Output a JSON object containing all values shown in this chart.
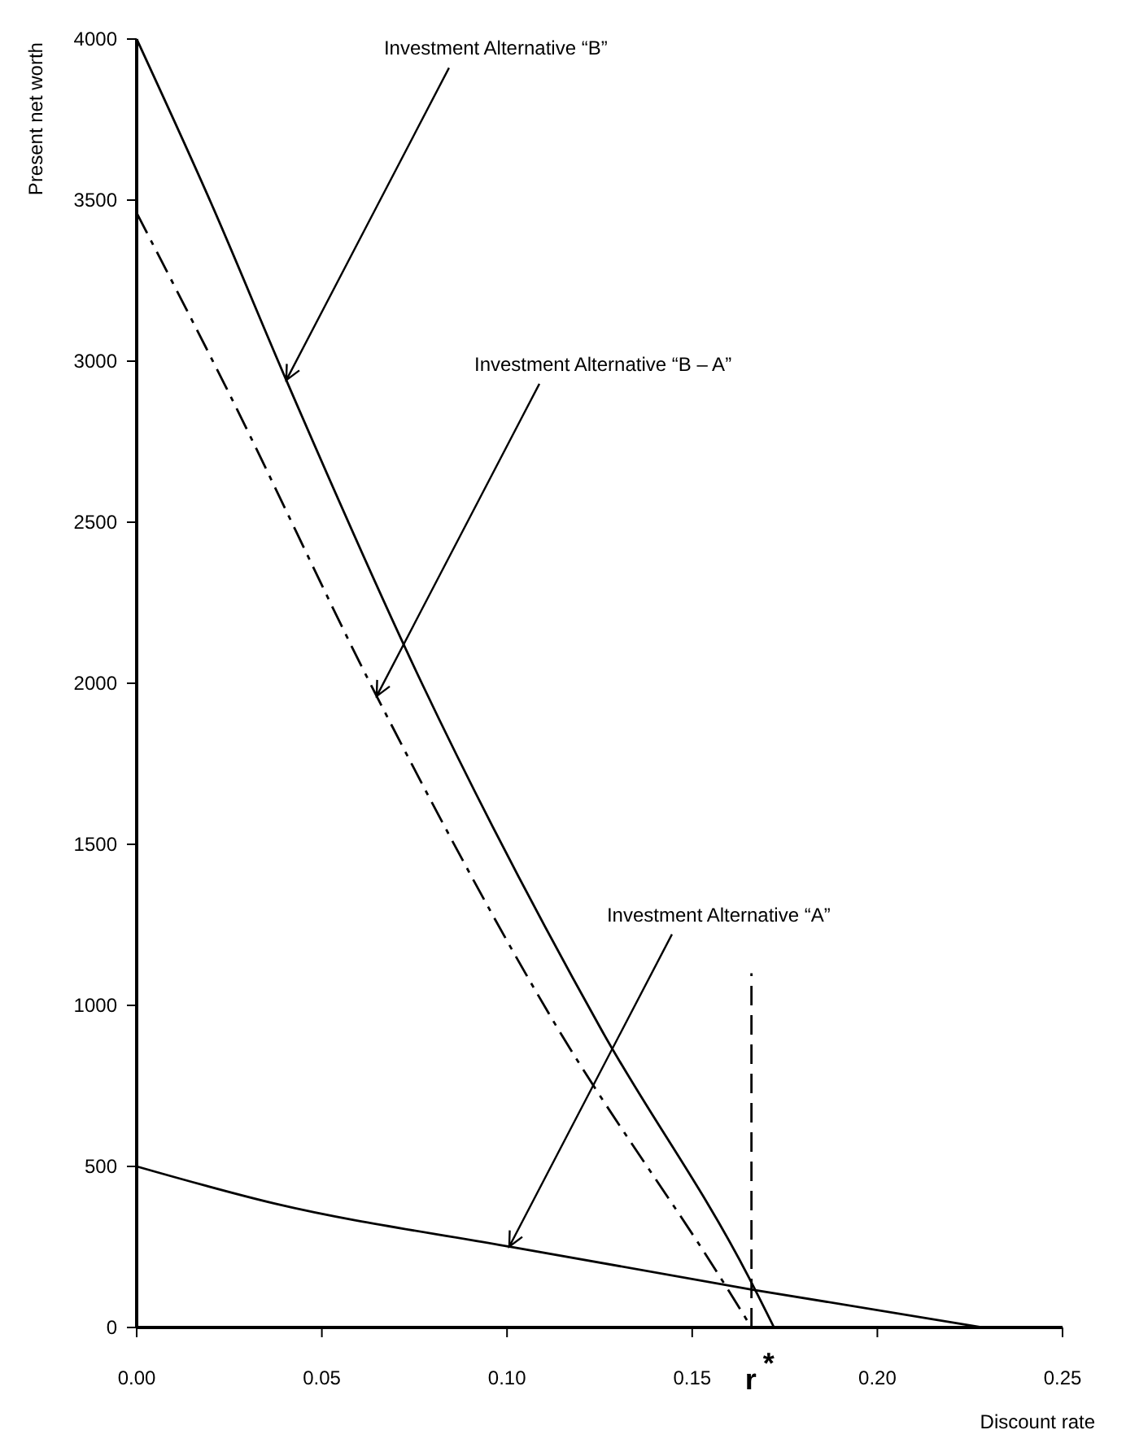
{
  "chart_data": {
    "type": "line",
    "xlabel": "Discount rate",
    "ylabel": "Present net worth",
    "xlim": [
      0,
      0.25
    ],
    "ylim": [
      0,
      4000
    ],
    "xticks": [
      {
        "value": 0,
        "label": "0.00"
      },
      {
        "value": 0.05,
        "label": "0.05"
      },
      {
        "value": 0.1,
        "label": "0.10"
      },
      {
        "value": 0.15,
        "label": "0.15"
      },
      {
        "value": 0.2,
        "label": "0.20"
      },
      {
        "value": 0.25,
        "label": "0.25"
      }
    ],
    "yticks": [
      0,
      500,
      1000,
      1500,
      2000,
      2500,
      3000,
      3500,
      4000
    ],
    "marker": "none",
    "series": [
      {
        "color": "#000000",
        "line_style": "solid",
        "x": [
          0,
          0.0202,
          0.0404,
          0.077,
          0.1254,
          0.1654,
          0.1721
        ],
        "values": [
          4000,
          3488,
          2941,
          2000,
          926,
          153,
          0
        ]
      },
      {
        "color": "#000000",
        "line_style": "dashed",
        "x": [
          0,
          0.0236,
          0.0648,
          0.112,
          0.1591,
          0.166
        ],
        "values": [
          3460,
          2931,
          1960,
          961,
          128,
          0
        ]
      },
      {
        "color": "#000000",
        "line_style": "solid",
        "x": [
          0,
          0.0375,
          0.1006,
          0.166,
          0.2285
        ],
        "values": [
          500,
          384,
          251,
          118,
          0
        ]
      }
    ],
    "ref_lines": [
      {
        "axis": "x",
        "value": 0.166,
        "label": "r$^{*}$",
        "line_style": "dashed",
        "color": "#000000"
      }
    ],
    "annotations": [
      {
        "text": "Investment Alternative “B”",
        "x": 0.0404,
        "y": 2941
      },
      {
        "text": "Investment Alternative “B – A”",
        "x": 0.0648,
        "y": 1960
      },
      {
        "text": "Investment Alternative “A”",
        "x": 0.1006,
        "y": 251
      }
    ]
  }
}
